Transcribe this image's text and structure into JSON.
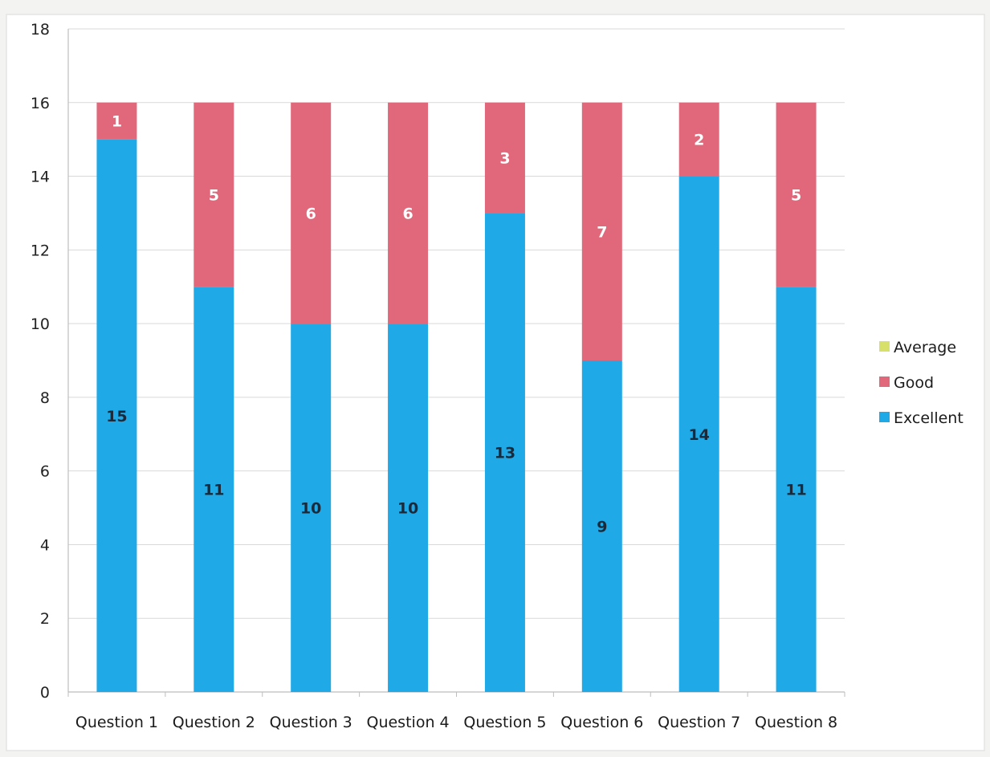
{
  "chart_data": {
    "type": "bar",
    "stacked": true,
    "categories": [
      "Question 1",
      "Question 2",
      "Question 3",
      "Question 4",
      "Question 5",
      "Question 6",
      "Question 7",
      "Question 8"
    ],
    "series": [
      {
        "name": "Excellent",
        "values": [
          15,
          11,
          10,
          10,
          13,
          9,
          14,
          11
        ],
        "color": "#1fa9e6",
        "label_color": "#1a2a3a"
      },
      {
        "name": "Good",
        "values": [
          1,
          5,
          6,
          6,
          3,
          7,
          2,
          5
        ],
        "color": "#e0687a",
        "label_color": "#ffffff"
      },
      {
        "name": "Average",
        "values": [
          0,
          0,
          0,
          0,
          0,
          0,
          0,
          0
        ],
        "color": "#d6e06a",
        "label_color": "#333333"
      }
    ],
    "legend_order": [
      "Average",
      "Good",
      "Excellent"
    ],
    "legend_position": "right",
    "ylim": [
      0,
      18
    ],
    "yticks": [
      0,
      2,
      4,
      6,
      8,
      10,
      12,
      14,
      16,
      18
    ],
    "grid": true,
    "title": "",
    "xlabel": "",
    "ylabel": ""
  }
}
